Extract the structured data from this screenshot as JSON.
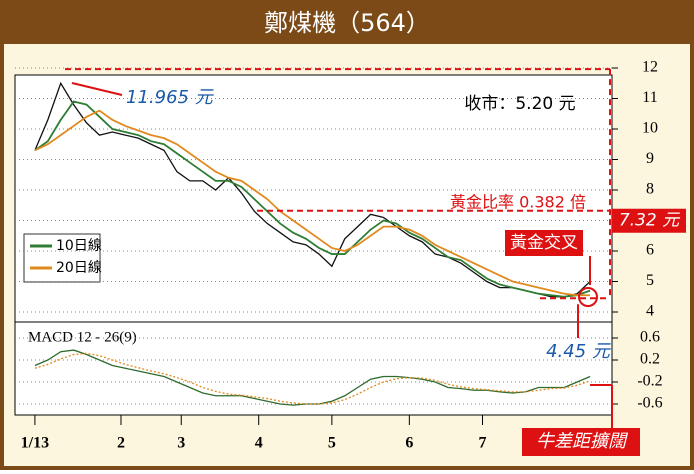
{
  "title": "鄭煤機（564）",
  "chart_data": [
    {
      "type": "line",
      "ylim": [
        4,
        12
      ],
      "yticks": [
        4,
        5,
        6,
        7,
        8,
        9,
        10,
        11,
        12
      ],
      "xlim": [
        -3,
        132
      ],
      "x": [
        0,
        3,
        6,
        9,
        12,
        15,
        18,
        21,
        24,
        27,
        30,
        33,
        36,
        39,
        42,
        45,
        48,
        51,
        54,
        57,
        60,
        63,
        66,
        69,
        72,
        75,
        78,
        81,
        84,
        87,
        90,
        93,
        96,
        99,
        102,
        105,
        108,
        111,
        114,
        117,
        120,
        123,
        126,
        129
      ],
      "series": [
        {
          "color": "#111111",
          "values": [
            9.3,
            10.3,
            11.5,
            10.8,
            10.2,
            9.8,
            9.9,
            9.8,
            9.7,
            9.5,
            9.3,
            8.6,
            8.3,
            8.3,
            8.0,
            8.4,
            7.9,
            7.3,
            6.9,
            6.6,
            6.3,
            6.2,
            5.9,
            5.5,
            6.4,
            6.8,
            7.2,
            7.1,
            6.8,
            6.5,
            6.3,
            5.9,
            5.8,
            5.6,
            5.3,
            5.0,
            4.8,
            4.8,
            4.7,
            4.6,
            4.5,
            4.5,
            4.6,
            5.0
          ]
        },
        {
          "name": "10日線",
          "color": "#2e7d32",
          "values": [
            9.3,
            9.6,
            10.3,
            10.9,
            10.8,
            10.4,
            10.0,
            9.9,
            9.8,
            9.6,
            9.5,
            9.2,
            8.9,
            8.6,
            8.3,
            8.3,
            8.1,
            7.7,
            7.3,
            6.9,
            6.6,
            6.4,
            6.1,
            5.9,
            5.9,
            6.3,
            6.7,
            7.0,
            6.9,
            6.6,
            6.4,
            6.1,
            5.8,
            5.7,
            5.4,
            5.1,
            4.9,
            4.8,
            4.7,
            4.6,
            4.55,
            4.5,
            4.55,
            4.7
          ]
        },
        {
          "name": "20日線",
          "color": "#e08a1e",
          "values": [
            9.3,
            9.5,
            9.8,
            10.1,
            10.4,
            10.6,
            10.3,
            10.1,
            9.95,
            9.8,
            9.7,
            9.5,
            9.2,
            8.9,
            8.6,
            8.4,
            8.3,
            8.0,
            7.7,
            7.3,
            7.0,
            6.7,
            6.4,
            6.1,
            6.0,
            6.2,
            6.5,
            6.8,
            6.8,
            6.7,
            6.5,
            6.2,
            6.0,
            5.8,
            5.6,
            5.4,
            5.2,
            5.0,
            4.9,
            4.8,
            4.7,
            4.6,
            4.55,
            4.55
          ]
        }
      ],
      "annotations": [
        {
          "text": "11.965 元",
          "value": 11.965
        },
        {
          "text": "7.32 元",
          "value": 7.32
        },
        {
          "text": "4.45 元",
          "value": 4.45
        }
      ],
      "notes": {
        "close": "收市：5.20 元",
        "ratio": "黃金比率 0.382 倍",
        "cross": "黃金交叉"
      }
    },
    {
      "type": "line",
      "title": "MACD 12 - 26(9)",
      "ylim": [
        -0.8,
        0.9
      ],
      "yticks": [
        -0.6,
        -0.2,
        0.2,
        0.6
      ],
      "xlim": [
        -3,
        132
      ],
      "xticks": [
        {
          "value": 0,
          "label": "1/13"
        },
        {
          "value": 20,
          "label": "2"
        },
        {
          "value": 34,
          "label": "3"
        },
        {
          "value": 52,
          "label": "4"
        },
        {
          "value": 69,
          "label": "5"
        },
        {
          "value": 87,
          "label": "6"
        },
        {
          "value": 104,
          "label": "7"
        }
      ],
      "x": [
        0,
        3,
        6,
        9,
        12,
        15,
        18,
        21,
        24,
        27,
        30,
        33,
        36,
        39,
        42,
        45,
        48,
        51,
        54,
        57,
        60,
        63,
        66,
        69,
        72,
        75,
        78,
        81,
        84,
        87,
        90,
        93,
        96,
        99,
        102,
        105,
        108,
        111,
        114,
        117,
        120,
        123,
        126,
        129
      ],
      "series": [
        {
          "color": "#2e6b2e",
          "values": [
            0.1,
            0.2,
            0.35,
            0.38,
            0.3,
            0.2,
            0.1,
            0.05,
            0.0,
            -0.05,
            -0.1,
            -0.2,
            -0.3,
            -0.4,
            -0.45,
            -0.45,
            -0.45,
            -0.5,
            -0.55,
            -0.6,
            -0.62,
            -0.6,
            -0.6,
            -0.55,
            -0.45,
            -0.3,
            -0.15,
            -0.1,
            -0.1,
            -0.12,
            -0.15,
            -0.2,
            -0.3,
            -0.32,
            -0.35,
            -0.35,
            -0.38,
            -0.4,
            -0.38,
            -0.3,
            -0.3,
            -0.3,
            -0.2,
            -0.1
          ]
        },
        {
          "color": "#e08a1e",
          "values": [
            0.05,
            0.12,
            0.22,
            0.3,
            0.32,
            0.28,
            0.2,
            0.12,
            0.06,
            0.0,
            -0.05,
            -0.12,
            -0.2,
            -0.3,
            -0.37,
            -0.42,
            -0.44,
            -0.47,
            -0.5,
            -0.55,
            -0.58,
            -0.6,
            -0.6,
            -0.58,
            -0.52,
            -0.42,
            -0.3,
            -0.2,
            -0.14,
            -0.12,
            -0.13,
            -0.17,
            -0.24,
            -0.29,
            -0.32,
            -0.34,
            -0.36,
            -0.38,
            -0.38,
            -0.35,
            -0.32,
            -0.31,
            -0.26,
            -0.18
          ]
        }
      ],
      "note": "牛差距擴闊"
    }
  ]
}
